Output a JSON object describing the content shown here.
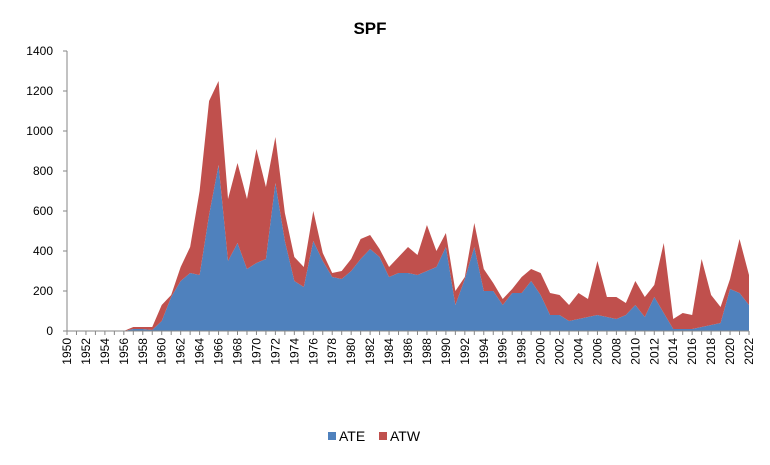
{
  "chart_data": {
    "type": "area",
    "stacked": true,
    "title": "SPF",
    "xlabel": "",
    "ylabel": "",
    "ylim": [
      0,
      1400
    ],
    "yticks": [
      "0",
      "200",
      "400",
      "600",
      "800",
      "1000",
      "1200",
      "1400"
    ],
    "grid": false,
    "legend_position": "bottom",
    "x": [
      1950,
      1951,
      1952,
      1953,
      1954,
      1955,
      1956,
      1957,
      1958,
      1959,
      1960,
      1961,
      1962,
      1963,
      1964,
      1965,
      1966,
      1967,
      1968,
      1969,
      1970,
      1971,
      1972,
      1973,
      1974,
      1975,
      1976,
      1977,
      1978,
      1979,
      1980,
      1981,
      1982,
      1983,
      1984,
      1985,
      1986,
      1987,
      1988,
      1989,
      1990,
      1991,
      1992,
      1993,
      1994,
      1995,
      1996,
      1997,
      1998,
      1999,
      2000,
      2001,
      2002,
      2003,
      2004,
      2005,
      2006,
      2007,
      2008,
      2009,
      2010,
      2011,
      2012,
      2013,
      2014,
      2015,
      2016,
      2017,
      2018,
      2019,
      2020,
      2021,
      2022
    ],
    "x_tick_labels": [
      "1950",
      "1952",
      "1954",
      "1956",
      "1958",
      "1960",
      "1962",
      "1964",
      "1966",
      "1968",
      "1970",
      "1972",
      "1974",
      "1976",
      "1978",
      "1980",
      "1982",
      "1984",
      "1986",
      "1988",
      "1990",
      "1992",
      "1994",
      "1996",
      "1998",
      "2000",
      "2002",
      "2004",
      "2006",
      "2008",
      "2010",
      "2012",
      "2014",
      "2016",
      "2018",
      "2020",
      "2022"
    ],
    "series": [
      {
        "name": "ATE",
        "color": "#4f81bd",
        "values": [
          0,
          0,
          0,
          0,
          0,
          0,
          0,
          10,
          10,
          5,
          50,
          170,
          250,
          290,
          280,
          580,
          830,
          350,
          440,
          310,
          340,
          360,
          740,
          450,
          250,
          220,
          450,
          350,
          270,
          260,
          300,
          360,
          410,
          370,
          270,
          290,
          290,
          280,
          300,
          320,
          420,
          130,
          260,
          420,
          200,
          200,
          130,
          190,
          190,
          250,
          180,
          80,
          80,
          50,
          60,
          70,
          80,
          70,
          60,
          80,
          130,
          70,
          170,
          90,
          10,
          10,
          10,
          20,
          30,
          40,
          210,
          190,
          130
        ]
      },
      {
        "name": "ATW",
        "color": "#c0504d",
        "values": [
          0,
          0,
          0,
          0,
          0,
          0,
          0,
          10,
          10,
          15,
          80,
          10,
          70,
          130,
          420,
          570,
          420,
          310,
          400,
          350,
          570,
          360,
          230,
          140,
          120,
          100,
          150,
          40,
          20,
          40,
          60,
          100,
          70,
          40,
          50,
          80,
          130,
          100,
          230,
          80,
          70,
          70,
          10,
          120,
          110,
          40,
          30,
          20,
          80,
          60,
          110,
          110,
          100,
          80,
          130,
          90,
          270,
          100,
          110,
          60,
          120,
          100,
          60,
          350,
          50,
          80,
          70,
          340,
          150,
          80,
          50,
          270,
          150
        ]
      }
    ]
  }
}
